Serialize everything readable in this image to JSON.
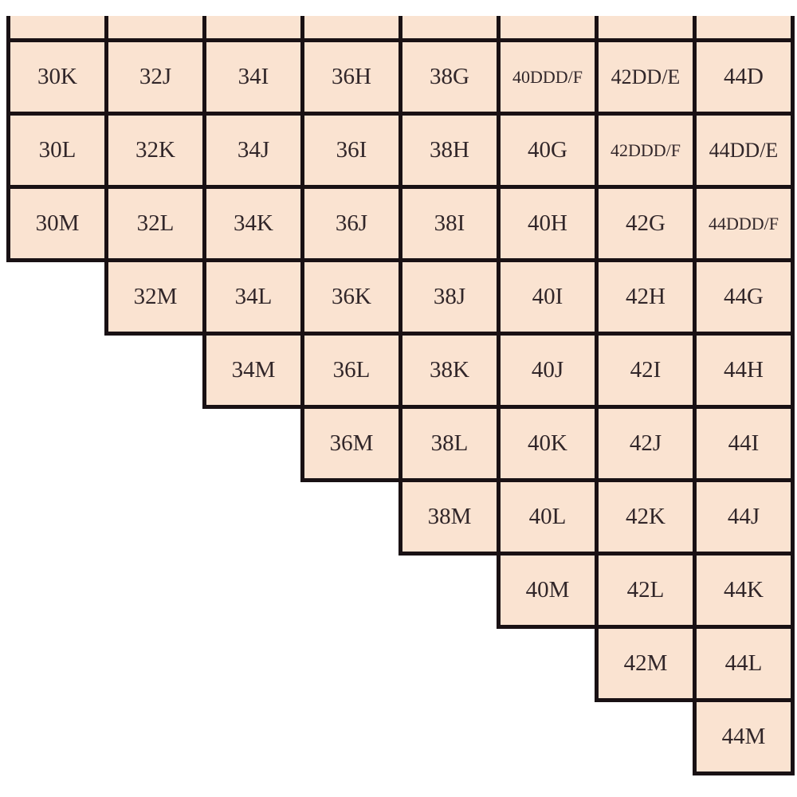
{
  "colors": {
    "background": "#ffffff",
    "cell_fill": "#fae3d1",
    "grid_line": "#191114",
    "text": "#312629"
  },
  "chart_data": {
    "type": "table",
    "title": "",
    "band_columns": [
      "30",
      "32",
      "34",
      "36",
      "38",
      "40",
      "42",
      "44"
    ],
    "rows": [
      {
        "partial": true,
        "cells": [
          "",
          "",
          "",
          "",
          "",
          "",
          "",
          ""
        ]
      },
      {
        "partial": false,
        "cells": [
          "30K",
          "32J",
          "34I",
          "36H",
          "38G",
          "40DDD/F",
          "42DD/E",
          "44D"
        ]
      },
      {
        "partial": false,
        "cells": [
          "30L",
          "32K",
          "34J",
          "36I",
          "38H",
          "40G",
          "42DDD/F",
          "44DD/E"
        ]
      },
      {
        "partial": false,
        "cells": [
          "30M",
          "32L",
          "34K",
          "36J",
          "38I",
          "40H",
          "42G",
          "44DDD/F"
        ]
      },
      {
        "partial": false,
        "cells": [
          null,
          "32M",
          "34L",
          "36K",
          "38J",
          "40I",
          "42H",
          "44G"
        ]
      },
      {
        "partial": false,
        "cells": [
          null,
          null,
          "34M",
          "36L",
          "38K",
          "40J",
          "42I",
          "44H"
        ]
      },
      {
        "partial": false,
        "cells": [
          null,
          null,
          null,
          "36M",
          "38L",
          "40K",
          "42J",
          "44I"
        ]
      },
      {
        "partial": false,
        "cells": [
          null,
          null,
          null,
          null,
          "38M",
          "40L",
          "42K",
          "44J"
        ]
      },
      {
        "partial": false,
        "cells": [
          null,
          null,
          null,
          null,
          null,
          "40M",
          "42L",
          "44K"
        ]
      },
      {
        "partial": false,
        "cells": [
          null,
          null,
          null,
          null,
          null,
          null,
          "42M",
          "44L"
        ]
      },
      {
        "partial": false,
        "cells": [
          null,
          null,
          null,
          null,
          null,
          null,
          null,
          "44M"
        ]
      }
    ]
  }
}
